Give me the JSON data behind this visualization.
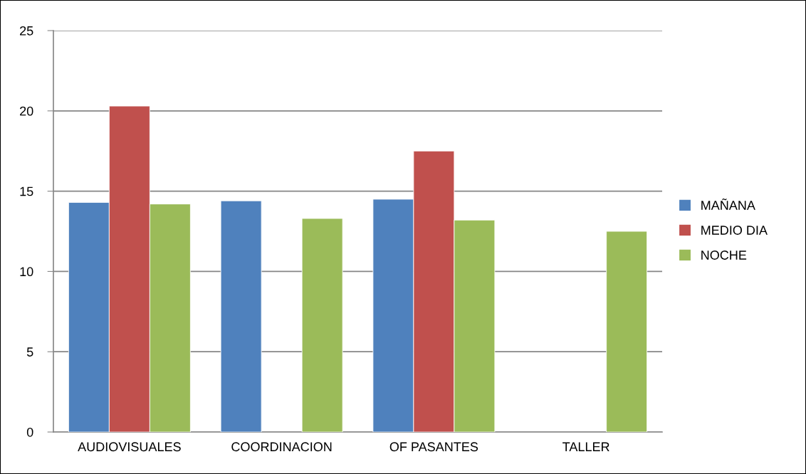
{
  "chart_data": {
    "type": "bar",
    "categories": [
      "AUDIOVISUALES",
      "COORDINACION",
      "OF PASANTES",
      "TALLER"
    ],
    "series": [
      {
        "name": "MAÑANA",
        "color": "#4f81bd",
        "values": [
          14.3,
          14.4,
          14.5,
          null
        ]
      },
      {
        "name": "MEDIO DIA",
        "color": "#c0504d",
        "values": [
          20.3,
          null,
          17.5,
          null
        ]
      },
      {
        "name": "NOCHE",
        "color": "#9bbb59",
        "values": [
          14.2,
          13.3,
          13.2,
          12.5
        ]
      }
    ],
    "ylim": [
      0,
      25
    ],
    "yticks": [
      0,
      5,
      10,
      15,
      20,
      25
    ],
    "grid": "y",
    "legend": "right"
  }
}
